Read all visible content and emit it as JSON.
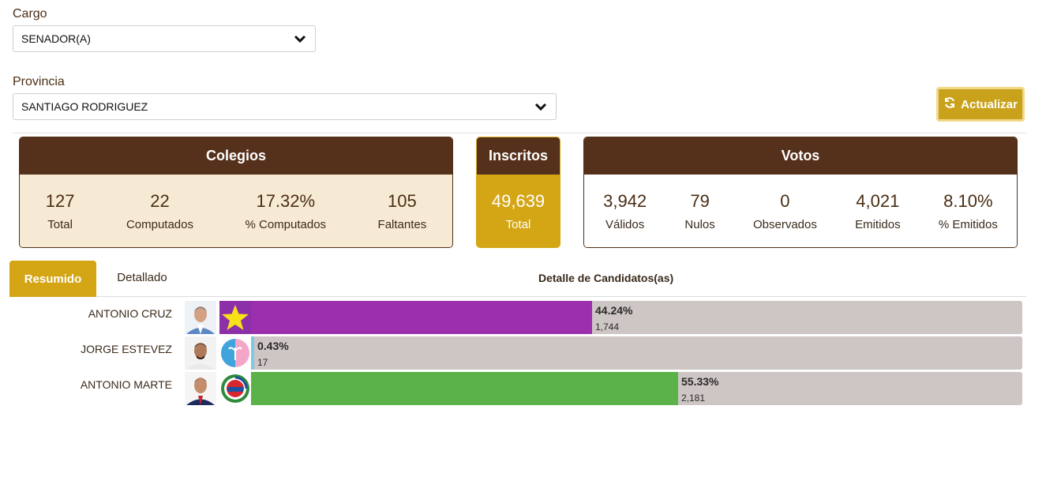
{
  "filters": {
    "cargo": {
      "label": "Cargo",
      "value": "SENADOR(A)"
    },
    "provincia": {
      "label": "Provincia",
      "value": "SANTIAGO RODRIGUEZ"
    }
  },
  "refresh_button": {
    "label": "Actualizar",
    "icon": "refresh-icon"
  },
  "colegios": {
    "title": "Colegios",
    "stats": [
      {
        "value": "127",
        "caption": "Total"
      },
      {
        "value": "22",
        "caption": "Computados"
      },
      {
        "value": "17.32%",
        "caption": "% Computados"
      },
      {
        "value": "105",
        "caption": "Faltantes"
      }
    ]
  },
  "inscritos": {
    "title": "Inscritos",
    "value": "49,639",
    "caption": "Total"
  },
  "votos": {
    "title": "Votos",
    "stats": [
      {
        "value": "3,942",
        "caption": "Válidos"
      },
      {
        "value": "79",
        "caption": "Nulos"
      },
      {
        "value": "0",
        "caption": "Observados"
      },
      {
        "value": "4,021",
        "caption": "Emitidos"
      },
      {
        "value": "8.10%",
        "caption": "% Emitidos"
      }
    ]
  },
  "tabs": {
    "active": "Resumido",
    "other": "Detallado"
  },
  "detail_title": "Detalle de Candidatos(as)",
  "colors": {
    "brown": "#55301a",
    "gold": "#d4a615",
    "track": "#cdc6c4"
  },
  "candidates": [
    {
      "name": "ANTONIO CRUZ",
      "percent_label": "44.24%",
      "percent": 44.24,
      "votes": "1,744",
      "color": "#9b2fae",
      "party_logo": "star-logo"
    },
    {
      "name": "JORGE ESTEVEZ",
      "percent_label": "0.43%",
      "percent": 0.43,
      "votes": "17",
      "color": "#7ec8e3",
      "party_logo": "flower-logo"
    },
    {
      "name": "ANTONIO MARTE",
      "percent_label": "55.33%",
      "percent": 55.33,
      "votes": "2,181",
      "color": "#5bb249",
      "party_logo": "ppd-seal-logo"
    }
  ]
}
